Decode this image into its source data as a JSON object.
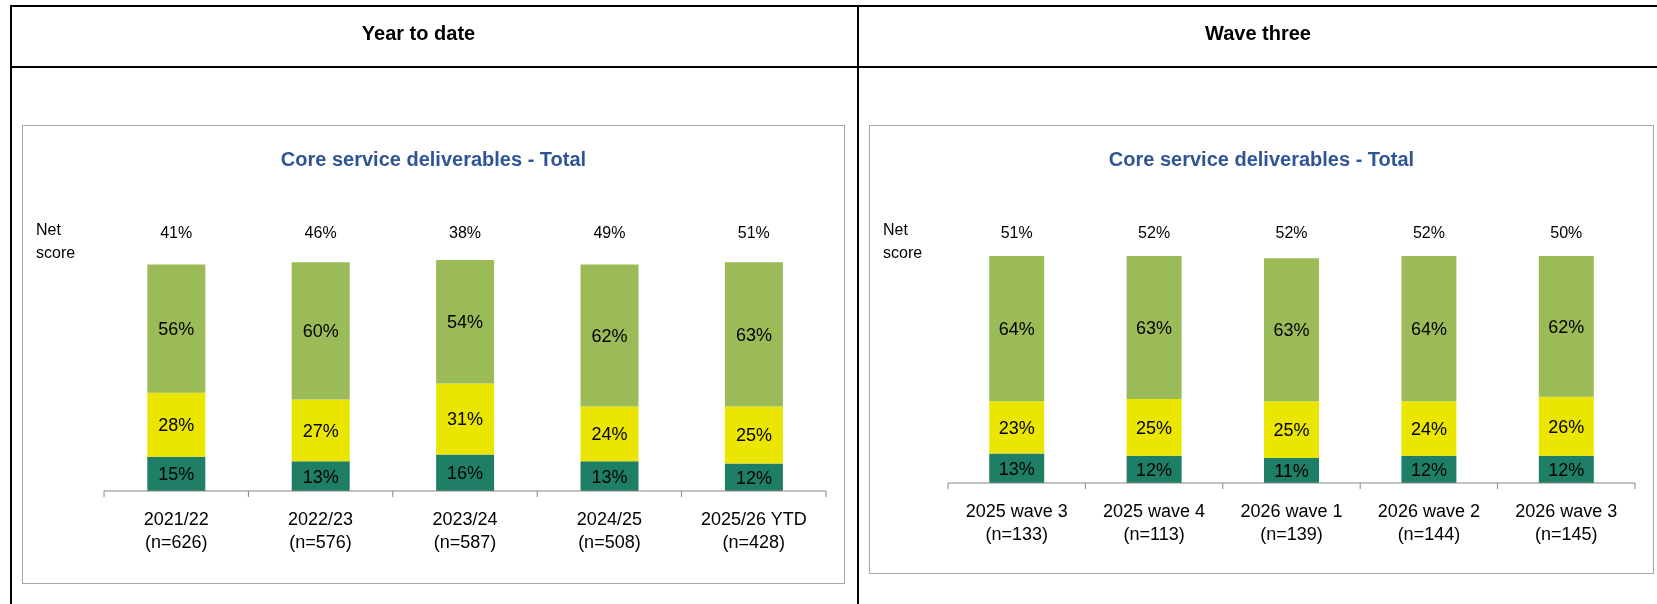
{
  "chart_data": [
    {
      "type": "bar",
      "title": "Year to date",
      "subtitle": "Core service deliverables - Total",
      "categories": [
        "2021/22\n(n=626)",
        "2022/23\n(n=576)",
        "2023/24\n(n=587)",
        "2024/25\n(n=508)",
        "2025/26 YTD\n(n=428)"
      ],
      "stacked": true,
      "tick_labels": "x",
      "series": [
        {
          "color": "#1e7f66",
          "values": [
            15,
            13,
            16,
            13,
            12
          ],
          "value_labels": [
            "15%",
            "13%",
            "16%",
            "13%",
            "12%"
          ]
        },
        {
          "color": "#ebe600",
          "values": [
            28,
            27,
            31,
            24,
            25
          ],
          "value_labels": [
            "28%",
            "27%",
            "31%",
            "24%",
            "25%"
          ]
        },
        {
          "color": "#9bbb59",
          "values": [
            56,
            60,
            54,
            62,
            63
          ],
          "value_labels": [
            "56%",
            "60%",
            "54%",
            "62%",
            "63%"
          ]
        }
      ],
      "annotations": [
        "Net score",
        "41%",
        "46%",
        "38%",
        "49%",
        "51%"
      ]
    },
    {
      "type": "bar",
      "title": "Wave three",
      "subtitle": "Core service deliverables - Total",
      "categories": [
        "2025 wave 3\n(n=133)",
        "2025 wave 4\n(n=113)",
        "2026 wave 1\n(n=139)",
        "2026 wave 2\n(n=144)",
        "2026 wave 3\n(n=145)"
      ],
      "stacked": true,
      "tick_labels": "x",
      "series": [
        {
          "color": "#1e7f66",
          "values": [
            13,
            12,
            11,
            12,
            12
          ],
          "value_labels": [
            "13%",
            "12%",
            "11%",
            "12%",
            "12%"
          ]
        },
        {
          "color": "#ebe600",
          "values": [
            23,
            25,
            25,
            24,
            26
          ],
          "value_labels": [
            "23%",
            "25%",
            "25%",
            "24%",
            "26%"
          ]
        },
        {
          "color": "#9bbb59",
          "values": [
            64,
            63,
            63,
            64,
            62
          ],
          "value_labels": [
            "64%",
            "63%",
            "63%",
            "64%",
            "62%"
          ]
        }
      ],
      "annotations": [
        "Net score",
        "51%",
        "52%",
        "52%",
        "52%",
        "50%"
      ]
    }
  ]
}
